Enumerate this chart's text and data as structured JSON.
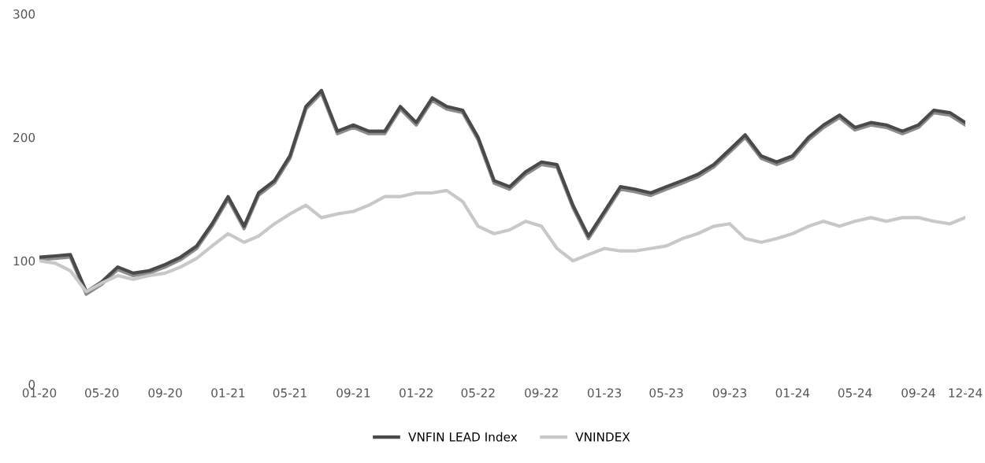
{
  "chart_data": {
    "type": "line",
    "x": [
      "2020-01",
      "2020-02",
      "2020-03",
      "2020-04",
      "2020-05",
      "2020-06",
      "2020-07",
      "2020-08",
      "2020-09",
      "2020-10",
      "2020-11",
      "2020-12",
      "2021-01",
      "2021-02",
      "2021-03",
      "2021-04",
      "2021-05",
      "2021-06",
      "2021-07",
      "2021-08",
      "2021-09",
      "2021-10",
      "2021-11",
      "2021-12",
      "2022-01",
      "2022-02",
      "2022-03",
      "2022-04",
      "2022-05",
      "2022-06",
      "2022-07",
      "2022-08",
      "2022-09",
      "2022-10",
      "2022-11",
      "2022-12",
      "2023-01",
      "2023-02",
      "2023-03",
      "2023-04",
      "2023-05",
      "2023-06",
      "2023-07",
      "2023-08",
      "2023-09",
      "2023-10",
      "2023-11",
      "2023-12",
      "2024-01",
      "2024-02",
      "2024-03",
      "2024-04",
      "2024-05",
      "2024-06",
      "2024-07",
      "2024-08",
      "2024-09",
      "2024-10",
      "2024-11",
      "2024-12"
    ],
    "series": [
      {
        "color": "#8c8c8c",
        "values": [
          101,
          102,
          103,
          73,
          81,
          93,
          88,
          90,
          95,
          101,
          110,
          128,
          150,
          126,
          153,
          163,
          183,
          223,
          236,
          203,
          208,
          203,
          203,
          223,
          210,
          230,
          223,
          220,
          198,
          163,
          158,
          170,
          178,
          176,
          143,
          118,
          138,
          158,
          156,
          153,
          158,
          163,
          168,
          176,
          188,
          200,
          183,
          178,
          183,
          198,
          208,
          216,
          206,
          210,
          208,
          203,
          208,
          220,
          218,
          210
        ]
      },
      {
        "name": "VNFIN LEAD Index",
        "color": "#4a4a4a",
        "values": [
          103,
          104,
          105,
          75,
          83,
          95,
          90,
          92,
          97,
          103,
          112,
          130,
          152,
          128,
          155,
          165,
          185,
          225,
          238,
          205,
          210,
          205,
          205,
          225,
          212,
          232,
          225,
          222,
          200,
          165,
          160,
          172,
          180,
          178,
          145,
          120,
          140,
          160,
          158,
          155,
          160,
          165,
          170,
          178,
          190,
          202,
          185,
          180,
          185,
          200,
          210,
          218,
          208,
          212,
          210,
          205,
          210,
          222,
          220,
          212
        ]
      },
      {
        "name": "VNINDEX",
        "color": "#c8c8c8",
        "values": [
          100,
          98,
          92,
          75,
          82,
          88,
          85,
          88,
          90,
          95,
          102,
          112,
          122,
          115,
          120,
          130,
          138,
          145,
          135,
          138,
          140,
          145,
          152,
          152,
          155,
          155,
          157,
          148,
          128,
          122,
          125,
          132,
          128,
          110,
          100,
          105,
          110,
          108,
          108,
          110,
          112,
          118,
          122,
          128,
          130,
          118,
          115,
          118,
          122,
          128,
          132,
          128,
          132,
          135,
          132,
          135,
          135,
          132,
          130,
          135
        ]
      }
    ],
    "xlim": [
      "2020-01",
      "2024-12"
    ],
    "xticks": [
      {
        "value": "2020-01",
        "label": "01-20"
      },
      {
        "value": "2020-05",
        "label": "05-20"
      },
      {
        "value": "2020-09",
        "label": "09-20"
      },
      {
        "value": "2021-01",
        "label": "01-21"
      },
      {
        "value": "2021-05",
        "label": "05-21"
      },
      {
        "value": "2021-09",
        "label": "09-21"
      },
      {
        "value": "2022-01",
        "label": "01-22"
      },
      {
        "value": "2022-05",
        "label": "05-22"
      },
      {
        "value": "2022-09",
        "label": "09-22"
      },
      {
        "value": "2023-01",
        "label": "01-23"
      },
      {
        "value": "2023-05",
        "label": "05-23"
      },
      {
        "value": "2023-09",
        "label": "09-23"
      },
      {
        "value": "2024-01",
        "label": "01-24"
      },
      {
        "value": "2024-05",
        "label": "05-24"
      },
      {
        "value": "2024-09",
        "label": "09-24"
      },
      {
        "value": "2024-12",
        "label": "12-24"
      }
    ],
    "ylim": [
      0,
      300
    ],
    "yticks": [
      0,
      100,
      200,
      300
    ],
    "grid": false,
    "legend": "bottom",
    "marker": "none",
    "line_style": "solid"
  }
}
